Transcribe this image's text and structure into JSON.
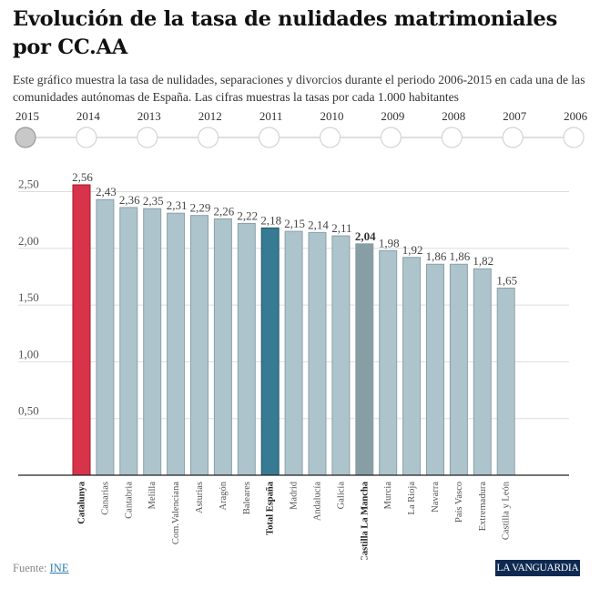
{
  "header": {
    "title": "Evolución de la tasa de nulidades matrimoniales por CC.AA",
    "subtitle": "Este gráfico muestra la tasa de nulidades, separaciones y divorcios durante el periodo 2006-2015 en cada una de las comunidades autónomas de España. Las cifras muestras la tasas por cada 1.000 habitantes"
  },
  "timeline": {
    "years": [
      "2015",
      "2014",
      "2013",
      "2012",
      "2011",
      "2010",
      "2009",
      "2008",
      "2007",
      "2006"
    ],
    "selected": "2015"
  },
  "chart_data": {
    "type": "bar",
    "title": "Evolución de la tasa de nulidades matrimoniales por CC.AA",
    "xlabel": "",
    "ylabel": "",
    "ylim": [
      0,
      2.6
    ],
    "yticks": [
      0.5,
      1.0,
      1.5,
      2.0,
      2.5
    ],
    "ytick_labels": [
      "0,50",
      "1,00",
      "1,50",
      "2,00",
      "2,50"
    ],
    "grid": true,
    "categories": [
      "Catalunya",
      "Canarias",
      "Cantabria",
      "Melilla",
      "Com.Valenciana",
      "Asturias",
      "Aragón",
      "Baleares",
      "Total España",
      "Madrid",
      "Andalucía",
      "Galicia",
      "Castilla La Mancha",
      "Murcia",
      "La Rioja",
      "Navarra",
      "País Vasco",
      "Extremadura",
      "Castilla y León"
    ],
    "values": [
      2.56,
      2.43,
      2.36,
      2.35,
      2.31,
      2.29,
      2.26,
      2.22,
      2.18,
      2.15,
      2.14,
      2.11,
      2.04,
      1.98,
      1.92,
      1.86,
      1.86,
      1.82,
      1.65
    ],
    "value_labels": [
      "2,56",
      "2,43",
      "2,36",
      "2,35",
      "2,31",
      "2,29",
      "2,26",
      "2,22",
      "2,18",
      "2,15",
      "2,14",
      "2,11",
      "2,04",
      "1,98",
      "1,92",
      "1,86",
      "1,86",
      "1,82",
      "1,65"
    ],
    "highlight": {
      "Catalunya": "#d7334a",
      "Total España": "#367a93",
      "Castilla La Mancha": "#879ea5"
    },
    "bold_categories": [
      "Catalunya",
      "Total España",
      "Castilla La Mancha"
    ],
    "default_color": "#aec4cc"
  },
  "footer": {
    "source_label": "Fuente:",
    "source_link": "INE",
    "logo": "LA VANGUARDIA"
  }
}
